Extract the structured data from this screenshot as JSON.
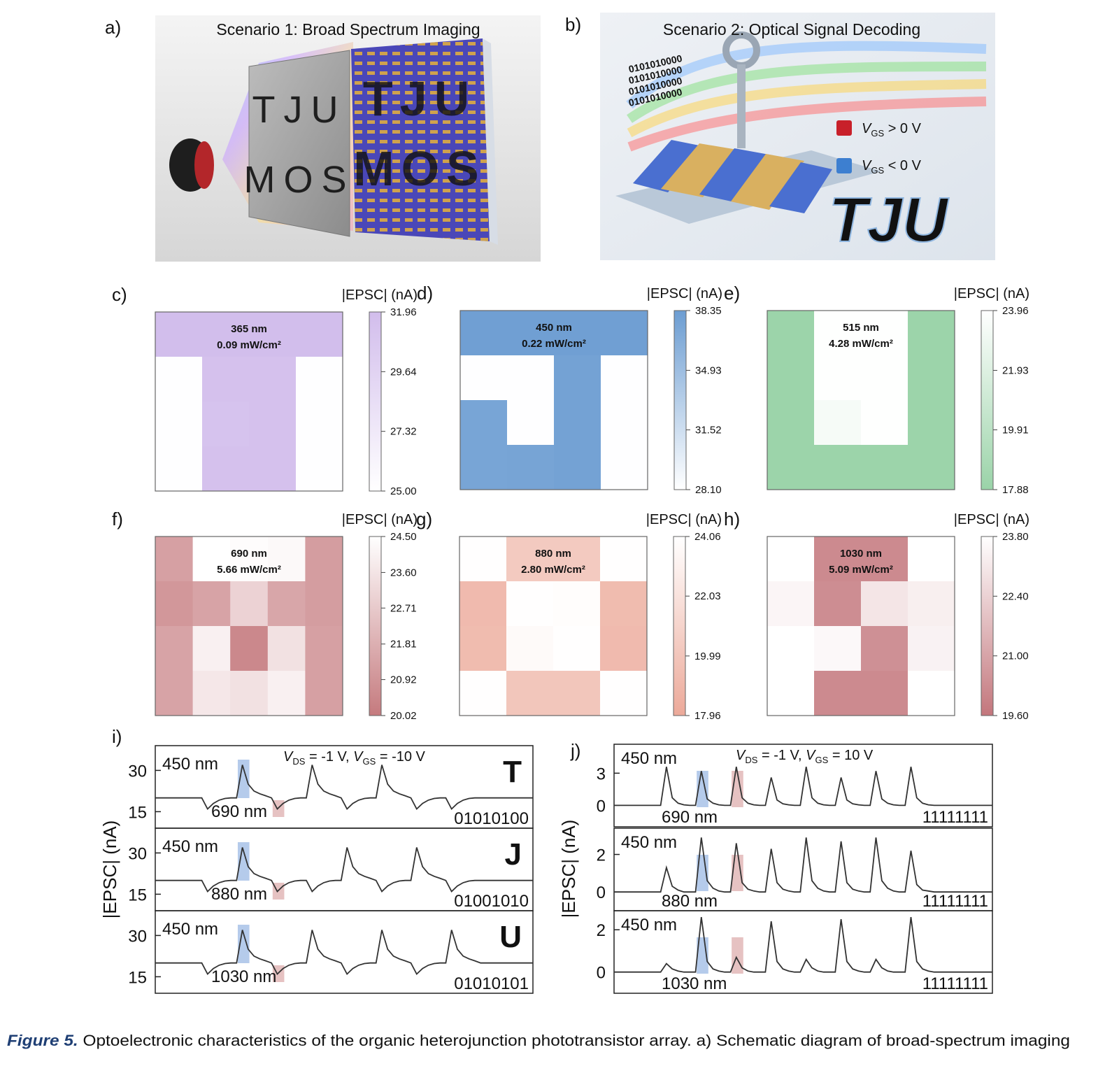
{
  "panels": {
    "a": {
      "label": "a)",
      "title": "Scenario 1: Broad Spectrum Imaging",
      "screen_text": [
        "TJU",
        "MOS"
      ]
    },
    "b": {
      "label": "b)",
      "title": "Scenario 2: Optical Signal Decoding",
      "binary": "0101010000",
      "lock_labels": [
        [
          [
            "V",
            "GS",
            " > 0 V"
          ]
        ],
        [
          [
            "V",
            "GS",
            " < 0 V"
          ]
        ]
      ],
      "watermark": "TJU"
    }
  },
  "heatmaps": [
    {
      "label": "c)",
      "wavelength": "365 nm",
      "power": "0.09 mW/cm²",
      "colorbar_label": "|EPSC| (nA)",
      "zlim": [
        25,
        31.96
      ],
      "zticks": [
        31.96,
        29.64,
        27.32,
        {
          "value": 25,
          "label": "25.00"
        }
      ],
      "low_color": "#ffffff",
      "high_color": "#d2bdec",
      "z": [
        [
          31.9,
          31.9,
          31.9,
          31.9
        ],
        [
          25.1,
          31.5,
          31.5,
          25.1
        ],
        [
          25.1,
          31.3,
          31.5,
          25.1
        ],
        [
          25.1,
          31.5,
          31.5,
          25.1
        ]
      ]
    },
    {
      "label": "d)",
      "wavelength": "450 nm",
      "power": "0.22 mW/cm²",
      "colorbar_label": "|EPSC| (nA)",
      "zlim": [
        28.1,
        38.35
      ],
      "zticks": [
        38.35,
        34.93,
        31.52,
        {
          "value": 28.1,
          "label": "28.10"
        }
      ],
      "low_color": "#ffffff",
      "high_color": "#6c9dd2",
      "z": [
        [
          38.1,
          38.1,
          38.1,
          38.1
        ],
        [
          28.2,
          28.2,
          37.8,
          28.2
        ],
        [
          37.5,
          28.2,
          37.8,
          28.2
        ],
        [
          37.5,
          37.6,
          37.8,
          28.2
        ]
      ]
    },
    {
      "label": "e)",
      "wavelength": "515 nm",
      "power": "4.28 mW/cm²",
      "colorbar_label": "|EPSC| (nA)",
      "zlim": [
        17.88,
        23.96
      ],
      "zticks": [
        23.96,
        21.93,
        19.91,
        17.88
      ],
      "low_color": "#9ad3a8",
      "high_color": "#ffffff",
      "z": [
        [
          18.0,
          23.9,
          23.9,
          18.0
        ],
        [
          18.0,
          23.9,
          23.9,
          18.0
        ],
        [
          18.0,
          23.4,
          23.9,
          18.0
        ],
        [
          18.0,
          18.0,
          18.0,
          18.0
        ]
      ]
    },
    {
      "label": "f)",
      "wavelength": "690 nm",
      "power": "5.66 mW/cm²",
      "colorbar_label": "|EPSC| (nA)",
      "zlim": [
        20.02,
        24.5
      ],
      "zticks": [
        {
          "value": 24.5,
          "label": "24.50"
        },
        {
          "value": 23.6,
          "label": "23.60"
        },
        22.71,
        21.81,
        20.92,
        20.02
      ],
      "low_color": "#c57a7e",
      "high_color": "#ffffff",
      "z": [
        [
          21.3,
          24.5,
          24.4,
          24.3,
          21.2
        ],
        [
          21.0,
          21.4,
          23.0,
          21.5,
          21.2
        ],
        [
          21.4,
          24.0,
          20.5,
          23.5,
          21.3
        ],
        [
          21.4,
          23.7,
          23.5,
          24.0,
          21.3
        ]
      ]
    },
    {
      "label": "g)",
      "wavelength": "880 nm",
      "power": "2.80 mW/cm²",
      "colorbar_label": "|EPSC| (nA)",
      "zlim": [
        17.96,
        24.06
      ],
      "zticks": [
        24.06,
        22.03,
        19.99,
        17.96
      ],
      "low_color": "#eca999",
      "high_color": "#ffffff",
      "z": [
        [
          24.0,
          20.3,
          20.3,
          24.0
        ],
        [
          19.2,
          24.0,
          23.9,
          19.3
        ],
        [
          19.3,
          23.7,
          24.0,
          19.2
        ],
        [
          24.0,
          20.0,
          20.0,
          24.0
        ]
      ]
    },
    {
      "label": "h)",
      "wavelength": "1030 nm",
      "power": "5.09 mW/cm²",
      "colorbar_label": "|EPSC| (nA)",
      "zlim": [
        19.6,
        23.8
      ],
      "zticks": [
        {
          "value": 23.8,
          "label": "23.80"
        },
        {
          "value": 22.4,
          "label": "22.40"
        },
        {
          "value": 21,
          "label": "21.00"
        },
        {
          "value": 19.6,
          "label": "19.60"
        }
      ],
      "low_color": "#c3767c",
      "high_color": "#ffffff",
      "z": [
        [
          23.8,
          20.2,
          20.2,
          23.8
        ],
        [
          23.5,
          20.3,
          23.0,
          23.3
        ],
        [
          23.8,
          23.6,
          20.4,
          23.4
        ],
        [
          23.8,
          20.2,
          20.2,
          23.8
        ]
      ]
    }
  ],
  "traces": [
    {
      "label": "i)",
      "ylabel": "|EPSC| (nA)",
      "annotation": [
        [
          "V",
          "DS",
          " = -1 V, "
        ],
        [
          "V",
          "GS",
          " = -10 V"
        ]
      ],
      "subplots": [
        {
          "ylim": [
            9,
            39
          ],
          "yticks": [
            15,
            30
          ],
          "blue_label": "450 nm",
          "red_label": "690 nm",
          "letter": "T",
          "code": "01010100",
          "values": [
            20,
            20,
            20,
            20,
            20,
            20,
            20,
            20,
            20,
            16,
            18,
            19.2,
            19.8,
            20,
            20,
            32,
            25,
            22.5,
            21.5,
            20.8,
            20,
            16,
            18,
            19.2,
            19.8,
            20,
            20,
            32,
            25,
            22.5,
            21.5,
            20.8,
            20,
            16,
            18,
            19.2,
            19.8,
            20,
            20,
            32,
            25,
            22.5,
            21.5,
            20.8,
            20,
            16,
            18,
            19.2,
            19.8,
            20,
            20,
            16,
            18,
            19.2,
            19.8,
            20,
            20,
            20,
            20,
            20,
            20,
            20,
            20,
            20,
            20,
            20
          ]
        },
        {
          "ylim": [
            9,
            39
          ],
          "yticks": [
            15,
            30
          ],
          "blue_label": "450 nm",
          "red_label": "880 nm",
          "letter": "J",
          "code": "01001010",
          "values": [
            20,
            20,
            20,
            20,
            20,
            20,
            20,
            20,
            20,
            16,
            18,
            19.2,
            19.8,
            20,
            20,
            32,
            25,
            22.5,
            21.5,
            20.8,
            20,
            16,
            18,
            19.2,
            19.8,
            20,
            20,
            16,
            18,
            19.2,
            19.8,
            20,
            20,
            32,
            25,
            22.5,
            21.5,
            20.8,
            20,
            16,
            18,
            19.2,
            19.8,
            20,
            20,
            32,
            25,
            22.5,
            21.5,
            20.8,
            20,
            16,
            18,
            19.2,
            19.8,
            20,
            20,
            20,
            20,
            20,
            20,
            20,
            20,
            20,
            20,
            20
          ]
        },
        {
          "ylim": [
            9,
            39
          ],
          "yticks": [
            15,
            30
          ],
          "blue_label": "450 nm",
          "red_label": "1030 nm",
          "letter": "U",
          "code": "01010101",
          "values": [
            20,
            20,
            20,
            20,
            20,
            20,
            20,
            20,
            20,
            16,
            18,
            19.2,
            19.8,
            20,
            20,
            32,
            25,
            22.5,
            21.5,
            20.8,
            20,
            16,
            18,
            19.2,
            19.8,
            20,
            20,
            32,
            25,
            22.5,
            21.5,
            20.8,
            20,
            16,
            18,
            19.2,
            19.8,
            20,
            20,
            32,
            25,
            22.5,
            21.5,
            20.8,
            20,
            16,
            18,
            19.2,
            19.8,
            20,
            20,
            32,
            25,
            22.5,
            21.5,
            20.8,
            20,
            20,
            20,
            20,
            20,
            20,
            20,
            20,
            20,
            20
          ]
        }
      ]
    },
    {
      "label": "j)",
      "ylabel": "|EPSC| (nA)",
      "annotation": [
        [
          "V",
          "DS",
          " = -1 V, "
        ],
        [
          "V",
          "GS",
          " = 10 V"
        ]
      ],
      "subplots": [
        {
          "ylim": [
            -2,
            5.7
          ],
          "yticks": [
            0,
            3
          ],
          "blue_label": "450 nm",
          "red_label": "690 nm",
          "code": "11111111",
          "values": [
            0,
            0,
            0,
            0,
            0,
            0,
            0,
            0,
            0,
            3.6,
            0.7,
            0.2,
            0.05,
            0,
            0,
            3.2,
            0.6,
            0.2,
            0.05,
            0,
            0,
            3.6,
            0.7,
            0.2,
            0.05,
            0,
            0,
            2.6,
            0.5,
            0.15,
            0.05,
            0,
            0,
            3.6,
            0.7,
            0.2,
            0.05,
            0,
            0,
            2.6,
            0.5,
            0.15,
            0.05,
            0,
            0,
            3.2,
            0.6,
            0.2,
            0.05,
            0,
            0,
            3.6,
            0.7,
            0.2,
            0.05,
            0,
            0,
            0,
            0,
            0,
            0,
            0,
            0,
            0,
            0,
            0
          ]
        },
        {
          "ylim": [
            -1,
            3.4
          ],
          "yticks": [
            0,
            2
          ],
          "blue_label": "450 nm",
          "red_label": "880 nm",
          "code": "11111111",
          "values": [
            0,
            0,
            0,
            0,
            0,
            0,
            0,
            0,
            0,
            1.3,
            0.3,
            0.1,
            0,
            0,
            0,
            2.9,
            0.6,
            0.2,
            0.05,
            0,
            0,
            2.6,
            0.5,
            0.15,
            0.05,
            0,
            0,
            2.3,
            0.5,
            0.15,
            0.05,
            0,
            0,
            2.9,
            0.6,
            0.2,
            0.05,
            0,
            0,
            2.7,
            0.5,
            0.15,
            0.05,
            0,
            0,
            2.9,
            0.6,
            0.2,
            0.05,
            0,
            0,
            2.2,
            0.4,
            0.1,
            0.05,
            0,
            0,
            0,
            0,
            0,
            0,
            0,
            0,
            0,
            0,
            0
          ]
        },
        {
          "ylim": [
            -1,
            2.9
          ],
          "yticks": [
            0,
            2
          ],
          "blue_label": "450 nm",
          "red_label": "1030 nm",
          "code": "11111111",
          "values": [
            0,
            0,
            0,
            0,
            0,
            0,
            0,
            0,
            0,
            0.4,
            0.15,
            0.05,
            0,
            0,
            0,
            2.6,
            0.5,
            0.15,
            0.05,
            0,
            0,
            0.7,
            0.2,
            0.05,
            0,
            0,
            0,
            2.4,
            0.5,
            0.15,
            0.05,
            0,
            0,
            0.6,
            0.2,
            0.05,
            0,
            0,
            0,
            2.5,
            0.5,
            0.15,
            0.05,
            0,
            0,
            0.6,
            0.2,
            0.05,
            0,
            0,
            0,
            2.6,
            0.5,
            0.15,
            0.05,
            0,
            0,
            0,
            0,
            0,
            0,
            0,
            0,
            0,
            0,
            0
          ]
        }
      ]
    }
  ],
  "caption": {
    "lead": "Figure 5.",
    "text": " Optoelectronic characteristics of the organic heterojunction phototransistor array. a) Schematic diagram of broad-spectrum imaging"
  }
}
